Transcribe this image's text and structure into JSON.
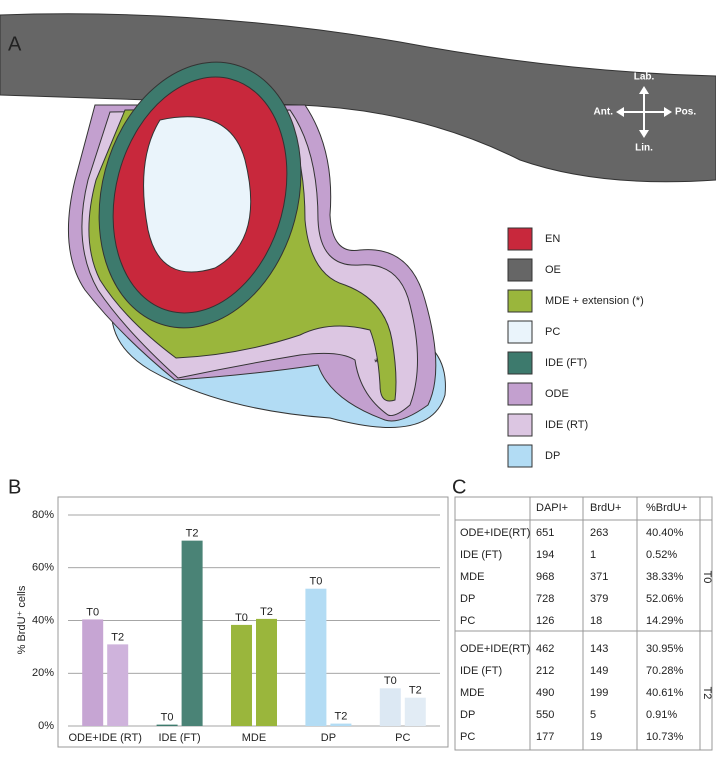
{
  "panel_a": {
    "label": "A",
    "asterisk": "*",
    "directions": {
      "up": "Lab.",
      "left": "Ant.",
      "right": "Pos.",
      "down": "Lin."
    },
    "legend": [
      {
        "label": "EN",
        "color": "#c8283c"
      },
      {
        "label": "OE",
        "color": "#666666"
      },
      {
        "label": "MDE + extension (*)",
        "color": "#9ab63c"
      },
      {
        "label": "PC",
        "color": "#eaf4fb"
      },
      {
        "label": "IDE (FT)",
        "color": "#3d7a6d"
      },
      {
        "label": "ODE",
        "color": "#c3a0cf"
      },
      {
        "label": "IDE (RT)",
        "color": "#dcc6e2"
      },
      {
        "label": "DP",
        "color": "#b2dcf4"
      }
    ]
  },
  "panel_b": {
    "label": "B"
  },
  "chart_data": {
    "type": "bar",
    "ylabel": "% BrdU⁺ cells",
    "categories": [
      "ODE+IDE (RT)",
      "IDE (FT)",
      "MDE",
      "DP",
      "PC"
    ],
    "series": [
      {
        "name": "T0",
        "colors": [
          "#c6a5d3",
          "#3d7a6d",
          "#9ab63c",
          "#b3dcf4",
          "#dce8f3"
        ],
        "values": [
          40.4,
          0.52,
          38.33,
          52.06,
          14.29
        ]
      },
      {
        "name": "T2",
        "colors": [
          "#cfb3dc",
          "#4a8376",
          "#9ab63c",
          "#b3dcf4",
          "#e2ecf5"
        ],
        "values": [
          30.95,
          70.28,
          40.61,
          0.91,
          10.73
        ]
      }
    ],
    "ylim": [
      0,
      80
    ],
    "yticks": [
      {
        "value": 0,
        "label": "0%"
      },
      {
        "value": 20,
        "label": "20%"
      },
      {
        "value": 40,
        "label": "40%"
      },
      {
        "value": 60,
        "label": "60%"
      },
      {
        "value": 80,
        "label": "80%"
      }
    ],
    "grid": true
  },
  "panel_c": {
    "label": "C",
    "header": [
      "DAPI+",
      "BrdU+",
      "%BrdU+"
    ],
    "groups": [
      {
        "label": "T0",
        "rows": [
          [
            "ODE+IDE(RT)",
            "651",
            "263",
            "40.40%"
          ],
          [
            "IDE (FT)",
            "194",
            "1",
            "0.52%"
          ],
          [
            "MDE",
            "968",
            "371",
            "38.33%"
          ],
          [
            "DP",
            "728",
            "379",
            "52.06%"
          ],
          [
            "PC",
            "126",
            "18",
            "14.29%"
          ]
        ]
      },
      {
        "label": "T2",
        "rows": [
          [
            "ODE+IDE(RT)",
            "462",
            "143",
            "30.95%"
          ],
          [
            "IDE (FT)",
            "212",
            "149",
            "70.28%"
          ],
          [
            "MDE",
            "490",
            "199",
            "40.61%"
          ],
          [
            "DP",
            "550",
            "5",
            "0.91%"
          ],
          [
            "PC",
            "177",
            "19",
            "10.73%"
          ]
        ]
      }
    ]
  }
}
